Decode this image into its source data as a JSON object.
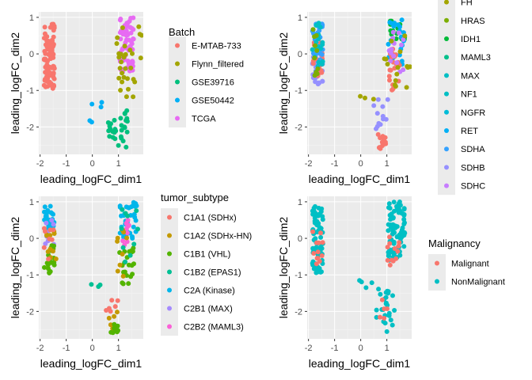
{
  "chart_data": [
    {
      "type": "scatter",
      "xlabel": "leading_logFC_dim1",
      "ylabel": "leading_logFC_dim2",
      "xlim": [
        -2.05,
        1.95
      ],
      "ylim": [
        -2.75,
        1.15
      ],
      "xticks": [
        "-2",
        "-1",
        "0",
        "1"
      ],
      "yticks": [
        "1",
        "0",
        "-1",
        "-2"
      ],
      "legend": {
        "title": "Batch",
        "entries": [
          {
            "label": "E-MTAB-733",
            "color": "#F8766D"
          },
          {
            "label": "Flynn_filtered",
            "color": "#A3A500"
          },
          {
            "label": "GSE39716",
            "color": "#00BF7D"
          },
          {
            "label": "GSE50442",
            "color": "#00B0F6"
          },
          {
            "label": "TCGA",
            "color": "#E76BF3"
          }
        ]
      },
      "clusters": [
        {
          "color": "#F8766D",
          "x": [
            -1.85,
            -1.45
          ],
          "y": [
            -0.95,
            0.85
          ],
          "n": 95
        },
        {
          "color": "#E76BF3",
          "x": [
            1.05,
            1.6
          ],
          "y": [
            -0.5,
            1.0
          ],
          "n": 75
        },
        {
          "color": "#A3A500",
          "x": [
            0.9,
            1.9
          ],
          "y": [
            -1.3,
            0.8
          ],
          "n": 30
        },
        {
          "color": "#00BF7D",
          "x": [
            0.6,
            1.35
          ],
          "y": [
            -2.6,
            -1.3
          ],
          "n": 30
        },
        {
          "color": "#00B0F6",
          "x": [
            -0.1,
            1.0
          ],
          "y": [
            -1.9,
            -1.2
          ],
          "n": 5
        }
      ]
    },
    {
      "type": "scatter",
      "xlabel": "leading_logFC_dim1",
      "ylabel": "leading_logFC_dim2",
      "xlim": [
        -2.05,
        1.95
      ],
      "ylim": [
        -2.75,
        1.15
      ],
      "xticks": [
        "-2",
        "-1",
        "0",
        "1"
      ],
      "yticks": [
        "1",
        "0",
        "-1",
        "-2"
      ],
      "legend": {
        "title": "",
        "entries": [
          {
            "label": "FH",
            "color": "#A3A500"
          },
          {
            "label": "HRAS",
            "color": "#7CAE00"
          },
          {
            "label": "IDH1",
            "color": "#00BA38"
          },
          {
            "label": "MAML3",
            "color": "#00C08B"
          },
          {
            "label": "MAX",
            "color": "#00BFC4"
          },
          {
            "label": "NF1",
            "color": "#00BFC4"
          },
          {
            "label": "NGFR",
            "color": "#00BCD8"
          },
          {
            "label": "RET",
            "color": "#00B0F6"
          },
          {
            "label": "SDHA",
            "color": "#35A2FF"
          },
          {
            "label": "SDHB",
            "color": "#9590FF"
          },
          {
            "label": "SDHC",
            "color": "#C77CFF"
          }
        ]
      },
      "clusters": [
        {
          "color": "#9590FF",
          "x": [
            -1.85,
            -1.45
          ],
          "y": [
            -0.95,
            0.0
          ],
          "n": 30
        },
        {
          "color": "#F8766D",
          "x": [
            -1.85,
            -1.45
          ],
          "y": [
            -0.8,
            0.4
          ],
          "n": 18
        },
        {
          "color": "#35A2FF",
          "x": [
            -1.85,
            -1.45
          ],
          "y": [
            -0.3,
            0.9
          ],
          "n": 25
        },
        {
          "color": "#00BFC4",
          "x": [
            -1.85,
            -1.45
          ],
          "y": [
            -0.5,
            0.9
          ],
          "n": 18
        },
        {
          "color": "#7CAE00",
          "x": [
            -1.85,
            -1.45
          ],
          "y": [
            -0.6,
            0.8
          ],
          "n": 10
        },
        {
          "color": "#00BA38",
          "x": [
            1.05,
            1.7
          ],
          "y": [
            0.3,
            1.0
          ],
          "n": 14
        },
        {
          "color": "#00B0F6",
          "x": [
            1.05,
            1.7
          ],
          "y": [
            -0.3,
            1.0
          ],
          "n": 25
        },
        {
          "color": "#F8766D",
          "x": [
            1.0,
            1.5
          ],
          "y": [
            -1.0,
            0.2
          ],
          "n": 22
        },
        {
          "color": "#C77CFF",
          "x": [
            1.0,
            1.7
          ],
          "y": [
            -0.5,
            0.6
          ],
          "n": 15
        },
        {
          "color": "#A3A500",
          "x": [
            0.9,
            1.9
          ],
          "y": [
            -1.0,
            0.8
          ],
          "n": 15
        },
        {
          "color": "#9590FF",
          "x": [
            0.5,
            1.3
          ],
          "y": [
            -2.2,
            -1.2
          ],
          "n": 12
        },
        {
          "color": "#F8766D",
          "x": [
            0.6,
            1.0
          ],
          "y": [
            -2.6,
            -2.2
          ],
          "n": 14
        },
        {
          "color": "#A3A500",
          "x": [
            -0.1,
            0.5
          ],
          "y": [
            -1.4,
            -1.15
          ],
          "n": 3
        }
      ]
    },
    {
      "type": "scatter",
      "xlabel": "leading_logFC_dim1",
      "ylabel": "leading_logFC_dim2",
      "xlim": [
        -2.05,
        1.95
      ],
      "ylim": [
        -2.75,
        1.15
      ],
      "xticks": [
        "-2",
        "-1",
        "0",
        "1"
      ],
      "yticks": [
        "1",
        "0",
        "-1",
        "-2"
      ],
      "legend": {
        "title": "tumor_subtype",
        "entries": [
          {
            "label": "C1A1 (SDHx)",
            "color": "#F8766D"
          },
          {
            "label": "C1A2 (SDHx-HN)",
            "color": "#C49A00"
          },
          {
            "label": "C1B1 (VHL)",
            "color": "#53B400"
          },
          {
            "label": "C1B2 (EPAS1)",
            "color": "#00C094"
          },
          {
            "label": "C2A (Kinase)",
            "color": "#00B6EB"
          },
          {
            "label": "C2B1 (MAX)",
            "color": "#A58AFF"
          },
          {
            "label": "C2B2 (MAML3)",
            "color": "#FB61D7"
          }
        ]
      },
      "clusters": [
        {
          "color": "#00B6EB",
          "x": [
            -1.85,
            -1.45
          ],
          "y": [
            0.2,
            0.9
          ],
          "n": 30
        },
        {
          "color": "#A58AFF",
          "x": [
            -1.85,
            -1.45
          ],
          "y": [
            -0.2,
            0.6
          ],
          "n": 8
        },
        {
          "color": "#53B400",
          "x": [
            -1.85,
            -1.45
          ],
          "y": [
            -0.95,
            -0.2
          ],
          "n": 20
        },
        {
          "color": "#C49A00",
          "x": [
            -1.85,
            -1.3
          ],
          "y": [
            -0.9,
            0.2
          ],
          "n": 10
        },
        {
          "color": "#F8766D",
          "x": [
            -1.85,
            -1.45
          ],
          "y": [
            -0.6,
            0.3
          ],
          "n": 8
        },
        {
          "color": "#00B6EB",
          "x": [
            1.05,
            1.7
          ],
          "y": [
            0.0,
            1.0
          ],
          "n": 40
        },
        {
          "color": "#FB61D7",
          "x": [
            1.05,
            1.5
          ],
          "y": [
            -0.2,
            0.5
          ],
          "n": 10
        },
        {
          "color": "#53B400",
          "x": [
            1.0,
            1.6
          ],
          "y": [
            -1.3,
            -0.2
          ],
          "n": 22
        },
        {
          "color": "#C49A00",
          "x": [
            0.8,
            1.4
          ],
          "y": [
            -1.1,
            0.3
          ],
          "n": 10
        },
        {
          "color": "#00C094",
          "x": [
            1.1,
            1.8
          ],
          "y": [
            -0.8,
            0.8
          ],
          "n": 10
        },
        {
          "color": "#F8766D",
          "x": [
            0.5,
            1.0
          ],
          "y": [
            -2.0,
            -1.6
          ],
          "n": 6
        },
        {
          "color": "#C49A00",
          "x": [
            0.5,
            1.0
          ],
          "y": [
            -2.5,
            -1.8
          ],
          "n": 5
        },
        {
          "color": "#53B400",
          "x": [
            0.7,
            1.0
          ],
          "y": [
            -2.65,
            -2.3
          ],
          "n": 10
        },
        {
          "color": "#00C094",
          "x": [
            -0.1,
            0.4
          ],
          "y": [
            -1.4,
            -1.2
          ],
          "n": 3
        }
      ]
    },
    {
      "type": "scatter",
      "xlabel": "leading_logFC_dim1",
      "ylabel": "leading_logFC_dim2",
      "xlim": [
        -2.05,
        1.95
      ],
      "ylim": [
        -2.75,
        1.15
      ],
      "xticks": [
        "-2",
        "-1",
        "0",
        "1"
      ],
      "yticks": [
        "1",
        "0",
        "-1",
        "-2"
      ],
      "legend": {
        "title": "Malignancy",
        "entries": [
          {
            "label": "Malignant",
            "color": "#F8766D"
          },
          {
            "label": "NonMalignant",
            "color": "#00BFC4"
          }
        ]
      },
      "clusters": [
        {
          "color": "#00BFC4",
          "x": [
            -1.85,
            -1.45
          ],
          "y": [
            -0.95,
            0.9
          ],
          "n": 80
        },
        {
          "color": "#F8766D",
          "x": [
            -1.85,
            -1.45
          ],
          "y": [
            -0.7,
            0.2
          ],
          "n": 12
        },
        {
          "color": "#00BFC4",
          "x": [
            1.05,
            1.7
          ],
          "y": [
            -0.6,
            1.0
          ],
          "n": 85
        },
        {
          "color": "#F8766D",
          "x": [
            1.0,
            1.5
          ],
          "y": [
            -0.8,
            0.2
          ],
          "n": 12
        },
        {
          "color": "#00BFC4",
          "x": [
            0.6,
            1.3
          ],
          "y": [
            -2.6,
            -1.2
          ],
          "n": 25
        },
        {
          "color": "#F8766D",
          "x": [
            0.5,
            1.1
          ],
          "y": [
            -2.2,
            -1.6
          ],
          "n": 5
        },
        {
          "color": "#00BFC4",
          "x": [
            -0.1,
            0.5
          ],
          "y": [
            -1.45,
            -1.15
          ],
          "n": 4
        }
      ]
    }
  ]
}
